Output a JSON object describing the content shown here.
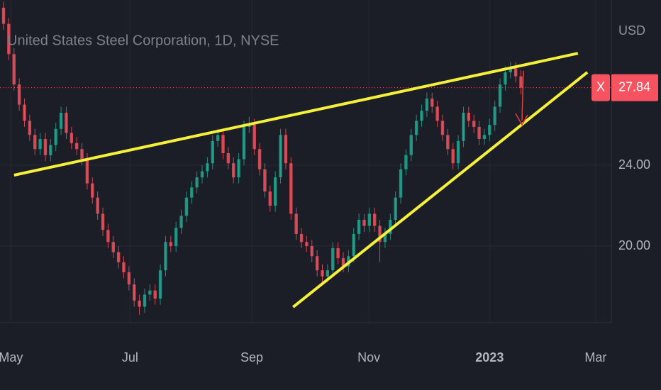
{
  "chart_data": {
    "type": "candlestick",
    "title": "United States Steel Corporation, 1D, NYSE",
    "currency": "USD",
    "marker": "X",
    "up_color": "#22ab94",
    "down_color": "#f7525f",
    "trend_color": "#f5f03a",
    "grid": true,
    "candles": {
      "open": [
        31.8,
        31.0,
        29.5,
        28.0,
        27.0,
        26.2,
        25.5,
        24.8,
        25.3,
        24.5,
        25.0,
        25.8,
        26.6,
        25.6,
        25.1,
        24.8,
        24.3,
        23.1,
        22.4,
        21.6,
        20.8,
        20.2,
        19.7,
        19.2,
        18.7,
        18.1,
        17.3,
        17.0,
        17.6,
        17.8,
        17.4,
        18.8,
        20.2,
        20.0,
        20.9,
        21.5,
        22.4,
        22.9,
        23.4,
        23.7,
        24.1,
        25.2,
        25.5,
        24.6,
        24.1,
        23.4,
        24.3,
        25.9,
        26.0,
        24.8,
        23.8,
        22.7,
        22.0,
        23.4,
        25.5,
        24.1,
        21.6,
        20.6,
        20.2,
        20.0,
        19.5,
        18.8,
        18.5,
        18.8,
        19.9,
        19.4,
        19.0,
        19.5,
        20.6,
        21.3,
        21.0,
        21.6,
        21.0,
        20.2,
        20.6,
        21.3,
        22.4,
        23.8,
        24.5,
        25.5,
        26.2,
        26.7,
        27.3,
        26.9,
        26.2,
        25.5,
        24.8,
        24.1,
        25.2,
        26.6,
        26.2,
        25.9,
        25.3,
        25.5,
        26.0,
        26.9,
        28.0,
        28.6,
        28.8,
        28.4
      ],
      "high": [
        32.1,
        31.3,
        29.8,
        28.3,
        27.3,
        26.5,
        25.8,
        25.6,
        25.6,
        25.3,
        26.1,
        26.9,
        26.9,
        25.9,
        25.4,
        25.1,
        24.6,
        23.4,
        22.7,
        21.9,
        21.1,
        20.5,
        20.0,
        19.5,
        19.0,
        18.4,
        17.6,
        17.9,
        18.1,
        18.1,
        19.1,
        20.5,
        20.5,
        21.2,
        21.8,
        22.7,
        23.2,
        23.7,
        24.0,
        24.4,
        25.5,
        25.8,
        25.8,
        24.9,
        24.4,
        24.6,
        26.2,
        26.4,
        26.3,
        25.1,
        24.1,
        23.0,
        23.7,
        25.8,
        25.8,
        24.4,
        21.9,
        20.9,
        20.5,
        20.3,
        19.8,
        19.1,
        19.1,
        20.2,
        20.2,
        19.7,
        19.8,
        20.9,
        21.6,
        21.6,
        21.9,
        21.9,
        21.3,
        20.9,
        21.6,
        22.7,
        24.1,
        24.8,
        25.8,
        26.5,
        27.0,
        27.6,
        27.6,
        27.2,
        26.5,
        25.8,
        25.1,
        25.5,
        26.9,
        26.9,
        26.5,
        26.2,
        25.8,
        26.3,
        27.2,
        28.3,
        28.9,
        29.1,
        29.1,
        28.7
      ],
      "low": [
        30.7,
        29.2,
        27.7,
        26.7,
        25.9,
        25.2,
        24.5,
        24.5,
        24.2,
        24.2,
        24.7,
        25.5,
        25.3,
        24.8,
        24.5,
        24.0,
        22.8,
        22.1,
        21.3,
        20.5,
        19.9,
        19.4,
        18.9,
        18.4,
        17.8,
        17.0,
        16.6,
        16.7,
        17.3,
        17.1,
        17.1,
        18.5,
        19.7,
        19.7,
        20.6,
        21.2,
        22.1,
        22.6,
        23.1,
        23.4,
        23.8,
        24.9,
        24.3,
        23.8,
        23.1,
        23.1,
        24.0,
        25.6,
        24.5,
        23.5,
        22.4,
        21.7,
        21.7,
        23.1,
        23.8,
        21.3,
        20.3,
        19.9,
        19.7,
        19.2,
        18.5,
        18.2,
        18.2,
        18.5,
        19.1,
        18.7,
        18.7,
        19.2,
        20.3,
        20.7,
        20.7,
        20.7,
        19.2,
        19.9,
        20.3,
        21.0,
        22.1,
        23.5,
        24.2,
        25.2,
        25.9,
        26.4,
        26.6,
        25.9,
        25.2,
        24.5,
        23.8,
        23.8,
        24.9,
        25.9,
        25.6,
        25.0,
        25.0,
        25.2,
        25.7,
        26.6,
        27.7,
        28.3,
        28.1,
        27.5
      ],
      "close": [
        31.0,
        29.5,
        28.0,
        27.0,
        26.2,
        25.5,
        24.8,
        25.3,
        24.5,
        25.0,
        25.8,
        26.6,
        25.6,
        25.1,
        24.8,
        24.3,
        23.1,
        22.4,
        21.6,
        20.8,
        20.2,
        19.7,
        19.2,
        18.7,
        18.1,
        17.3,
        17.0,
        17.6,
        17.8,
        17.4,
        18.8,
        20.2,
        20.0,
        20.9,
        21.5,
        22.4,
        22.9,
        23.4,
        23.7,
        24.1,
        25.2,
        25.5,
        24.6,
        24.1,
        23.4,
        24.3,
        25.9,
        26.0,
        24.8,
        23.8,
        22.7,
        22.0,
        23.4,
        25.5,
        24.1,
        21.6,
        20.6,
        20.2,
        20.0,
        19.5,
        18.8,
        18.5,
        18.8,
        19.9,
        19.4,
        19.0,
        19.5,
        20.6,
        21.3,
        21.0,
        21.6,
        21.0,
        20.2,
        20.6,
        21.3,
        22.4,
        23.8,
        24.5,
        25.5,
        26.2,
        26.7,
        27.3,
        26.9,
        26.2,
        25.5,
        24.8,
        24.1,
        25.2,
        26.6,
        26.2,
        25.9,
        25.3,
        25.5,
        26.0,
        26.9,
        28.0,
        28.6,
        28.8,
        28.4,
        27.84
      ]
    },
    "trendlines": [
      {
        "x": [
          2.0,
          109.9
        ],
        "y": [
          23.51,
          29.54
        ]
      },
      {
        "x": [
          55.4,
          111.7
        ],
        "y": [
          16.98,
          28.6
        ]
      }
    ],
    "xlim": [
      -0.68,
      116.3
    ],
    "xticks": [
      {
        "value": 1.4,
        "label": "May"
      },
      {
        "value": 24.2,
        "label": "Jul"
      },
      {
        "value": 47.5,
        "label": "Sep"
      },
      {
        "value": 69.9,
        "label": "Nov"
      },
      {
        "value": 93.0,
        "label": "2023"
      },
      {
        "value": 113.3,
        "label": "Mar"
      }
    ],
    "ylim": [
      16.21,
      32.18
    ],
    "yticks": [
      {
        "value": 20,
        "label": "20.00"
      },
      {
        "value": 24,
        "label": "24.00"
      }
    ]
  }
}
